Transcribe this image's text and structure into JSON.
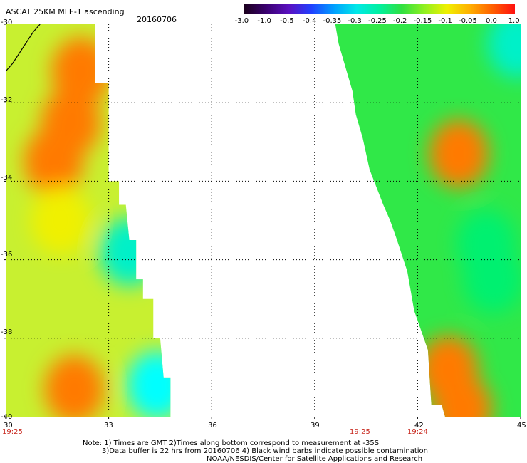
{
  "header": {
    "title": "ASCAT 25KM MLE-1 ascending",
    "date": "20160706"
  },
  "colorbar": {
    "labels": [
      "-3.0",
      "-1.0",
      "-0.5",
      "-0.4",
      "-0.35",
      "-0.3",
      "-0.25",
      "-0.2",
      "-0.15",
      "-0.1",
      "-0.05",
      "0.0",
      "1.0"
    ],
    "colors": [
      "#1a001a",
      "#3a0070",
      "#5a10c0",
      "#2040ff",
      "#00a0ff",
      "#00e8e8",
      "#00f0a0",
      "#30e040",
      "#90f020",
      "#f0f000",
      "#ffb000",
      "#ff6000",
      "#ff1010"
    ]
  },
  "axes": {
    "lat_labels": [
      "-30",
      "-32",
      "-34",
      "-36",
      "-38",
      "-40"
    ],
    "lon_labels": [
      "30",
      "33",
      "36",
      "39",
      "42",
      "45"
    ]
  },
  "times": {
    "left_edge": "19:25",
    "mid1": "19:25",
    "mid2": "19:24"
  },
  "notes": {
    "line1": "Note: 1) Times are GMT 2)Times along bottom correspond to measurement at -35S",
    "line2": "3)Data buffer is 22 hrs from 20160706 4) Black wind barbs indicate possible contamination",
    "line3": "NOAA/NESDIS/Center for Satellite Applications and Research"
  },
  "map_data": {
    "grid": {
      "lat_min": -40,
      "lat_max": -30,
      "lon_min": 30,
      "lon_max": 45
    },
    "left_swath": [
      [
        30.0,
        -30.0
      ],
      [
        32.6,
        -30.0
      ],
      [
        32.6,
        -31.5
      ],
      [
        33.0,
        -31.5
      ],
      [
        33.0,
        -34.0
      ],
      [
        33.3,
        -34.0
      ],
      [
        33.3,
        -34.6
      ],
      [
        33.5,
        -34.6
      ],
      [
        33.6,
        -35.5
      ],
      [
        33.8,
        -35.5
      ],
      [
        33.8,
        -36.5
      ],
      [
        34.0,
        -36.5
      ],
      [
        34.0,
        -37.0
      ],
      [
        34.3,
        -37.0
      ],
      [
        34.3,
        -38.0
      ],
      [
        34.5,
        -38.0
      ],
      [
        34.6,
        -39.0
      ],
      [
        34.8,
        -39.0
      ],
      [
        34.8,
        -40.0
      ],
      [
        30.0,
        -40.0
      ]
    ],
    "right_swath": [
      [
        39.6,
        -30.0
      ],
      [
        45.0,
        -30.0
      ],
      [
        45.0,
        -40.0
      ],
      [
        42.8,
        -40.0
      ],
      [
        42.7,
        -39.7
      ],
      [
        42.4,
        -39.7
      ],
      [
        42.3,
        -38.3
      ],
      [
        42.1,
        -37.8
      ],
      [
        41.9,
        -37.3
      ],
      [
        41.7,
        -36.3
      ],
      [
        41.4,
        -35.5
      ],
      [
        41.2,
        -35.0
      ],
      [
        41.0,
        -34.6
      ],
      [
        40.6,
        -33.7
      ],
      [
        40.4,
        -32.9
      ],
      [
        40.2,
        -32.3
      ],
      [
        40.1,
        -31.7
      ],
      [
        39.9,
        -31.1
      ],
      [
        39.7,
        -30.5
      ]
    ],
    "coast": [
      [
        30.0,
        -31.2
      ],
      [
        30.2,
        -31.0
      ],
      [
        30.5,
        -30.6
      ],
      [
        30.8,
        -30.2
      ],
      [
        31.0,
        -30.0
      ]
    ],
    "hot_spots": [
      {
        "lon": 32.2,
        "lat": -31.2,
        "value": -0.02
      },
      {
        "lon": 31.9,
        "lat": -32.5,
        "value": -0.03
      },
      {
        "lon": 31.4,
        "lat": -33.5,
        "value": -0.05
      },
      {
        "lon": 31.6,
        "lat": -35.0,
        "value": -0.1
      },
      {
        "lon": 32.0,
        "lat": -39.3,
        "value": -0.05
      },
      {
        "lon": 43.2,
        "lat": -33.3,
        "value": -0.02
      },
      {
        "lon": 42.9,
        "lat": -38.8,
        "value": -0.02
      },
      {
        "lon": 43.3,
        "lat": -39.8,
        "value": -0.03
      }
    ],
    "cool_spots": [
      {
        "lon": 33.6,
        "lat": -35.8,
        "value": -0.3
      },
      {
        "lon": 34.4,
        "lat": -39.2,
        "value": -0.35
      },
      {
        "lon": 44.2,
        "lat": -36.5,
        "value": -0.25
      },
      {
        "lon": 44.9,
        "lat": -30.5,
        "value": -0.3
      },
      {
        "lon": 44.0,
        "lat": -35.6,
        "value": -0.25
      }
    ]
  }
}
